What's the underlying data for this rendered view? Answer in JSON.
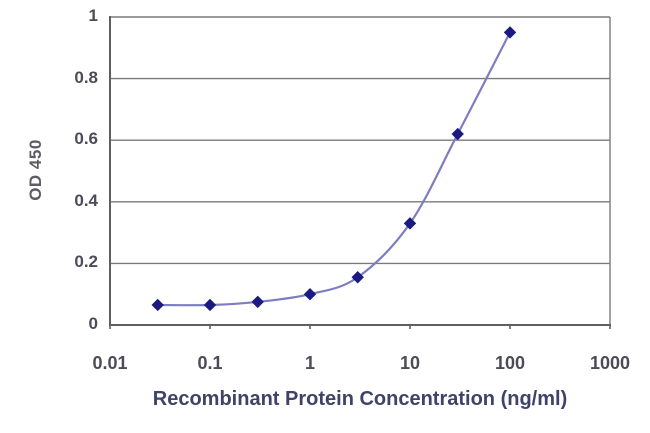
{
  "chart_data": {
    "type": "line",
    "title": "",
    "xlabel": "Recombinant Protein Concentration (ng/ml)",
    "ylabel": "OD 450",
    "x_scale": "log",
    "x": [
      0.03,
      0.1,
      0.3,
      1,
      3,
      10,
      30,
      100
    ],
    "series": [
      {
        "name": "OD 450",
        "values": [
          0.065,
          0.065,
          0.075,
          0.1,
          0.155,
          0.33,
          0.62,
          0.95
        ]
      }
    ],
    "xlim": [
      0.01,
      1000
    ],
    "ylim": [
      0,
      1
    ],
    "x_tick_labels": [
      "0.01",
      "0.1",
      "1",
      "10",
      "100",
      "1000"
    ],
    "x_tick_values": [
      0.01,
      0.1,
      1,
      10,
      100,
      1000
    ],
    "y_tick_labels": [
      "0",
      "0.2",
      "0.4",
      "0.6",
      "0.8",
      "1"
    ],
    "y_tick_values": [
      0,
      0.2,
      0.4,
      0.6,
      0.8,
      1
    ],
    "grid": "horizontal",
    "legend_position": "none",
    "line_smoothing": "spline",
    "marker_shape": "diamond",
    "colors": {
      "line": "#7d7dc2",
      "marker": "#1a1a80",
      "gridline": "#7a7a7a",
      "axis": "#5f5f5f",
      "tick_text": "#4e4b58",
      "xlabel_text": "#3f4367",
      "ylabel_text": "#5c5c63",
      "background": "#ffffff"
    }
  }
}
